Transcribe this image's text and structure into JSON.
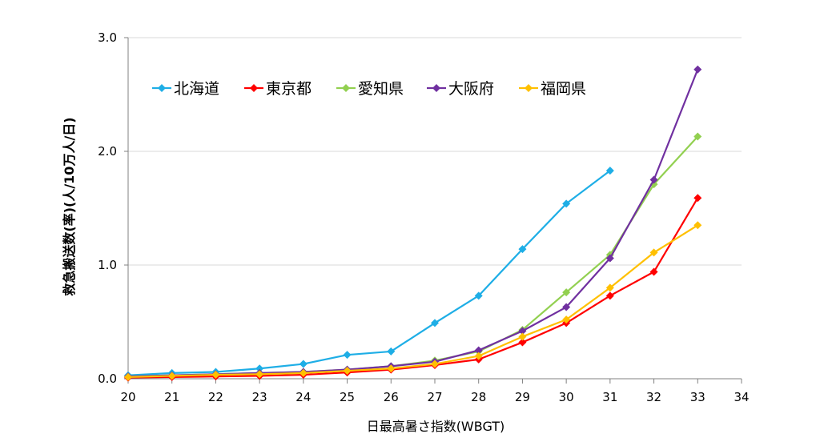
{
  "chart_data": {
    "type": "line",
    "title": "",
    "xlabel": "日最高暑さ指数(WBGT)",
    "ylabel": "救急搬送数(率)(人/10万人/日)",
    "xlim": [
      20,
      34
    ],
    "ylim": [
      0,
      3
    ],
    "x_ticks": [
      "20",
      "21",
      "22",
      "23",
      "24",
      "25",
      "26",
      "27",
      "28",
      "29",
      "30",
      "31",
      "32",
      "33",
      "34"
    ],
    "y_ticks": [
      "0.0",
      "1.0",
      "2.0",
      "3.0"
    ],
    "grid": "horizontal",
    "legend_position": "top-left",
    "series": [
      {
        "name": "北海道",
        "color": "#1EAEE6",
        "x": [
          20,
          21,
          22,
          23,
          24,
          25,
          26,
          27,
          28,
          29,
          30,
          31
        ],
        "y": [
          0.03,
          0.05,
          0.06,
          0.09,
          0.13,
          0.21,
          0.24,
          0.49,
          0.73,
          1.14,
          1.54,
          1.83
        ]
      },
      {
        "name": "東京都",
        "color": "#FF0000",
        "x": [
          20,
          21,
          22,
          23,
          24,
          25,
          26,
          27,
          28,
          29,
          30,
          31,
          32,
          33
        ],
        "y": [
          0.01,
          0.015,
          0.02,
          0.025,
          0.035,
          0.055,
          0.08,
          0.12,
          0.17,
          0.32,
          0.49,
          0.73,
          0.94,
          1.59
        ]
      },
      {
        "name": "愛知県",
        "color": "#92D050",
        "x": [
          20,
          21,
          22,
          23,
          24,
          25,
          26,
          27,
          28,
          29,
          30,
          31,
          32,
          33
        ],
        "y": [
          0.02,
          0.03,
          0.04,
          0.05,
          0.06,
          0.08,
          0.11,
          0.16,
          0.24,
          0.43,
          0.76,
          1.09,
          1.71,
          2.13
        ]
      },
      {
        "name": "大阪府",
        "color": "#7030A0",
        "x": [
          20,
          21,
          22,
          23,
          24,
          25,
          26,
          27,
          28,
          29,
          30,
          31,
          32,
          33
        ],
        "y": [
          0.02,
          0.03,
          0.04,
          0.05,
          0.06,
          0.08,
          0.11,
          0.15,
          0.25,
          0.42,
          0.63,
          1.06,
          1.75,
          2.72
        ]
      },
      {
        "name": "福岡県",
        "color": "#FFC000",
        "x": [
          20,
          21,
          22,
          23,
          24,
          25,
          26,
          27,
          28,
          29,
          30,
          31,
          32,
          33
        ],
        "y": [
          0.015,
          0.025,
          0.035,
          0.04,
          0.05,
          0.07,
          0.09,
          0.13,
          0.2,
          0.37,
          0.52,
          0.8,
          1.11,
          1.35
        ]
      }
    ]
  }
}
